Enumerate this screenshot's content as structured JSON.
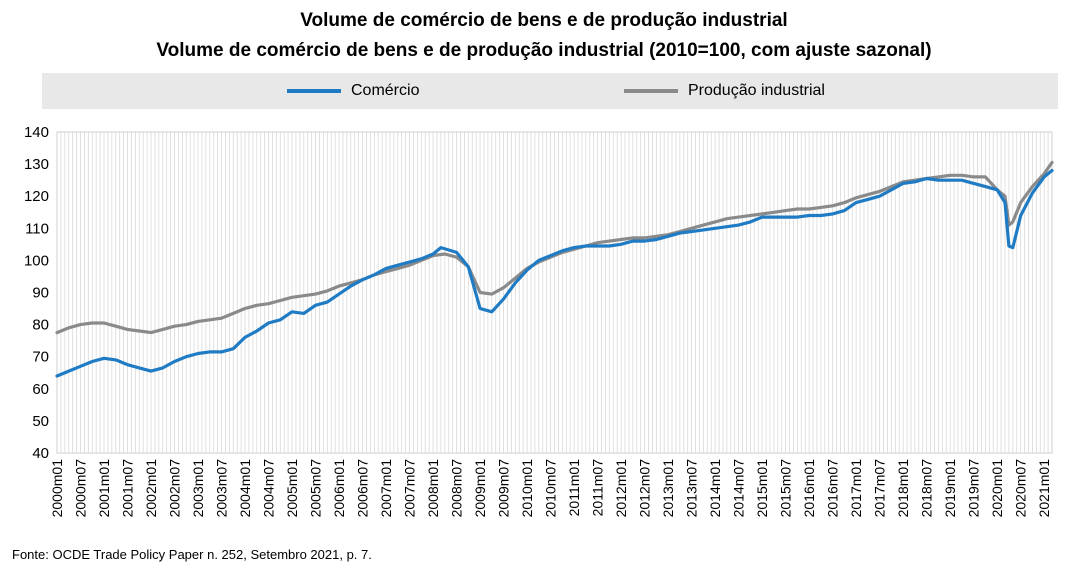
{
  "chart_data": {
    "type": "line",
    "title": "Volume de comércio de bens e de produção industrial",
    "subtitle": "Volume de comércio de bens e de produção industrial (2010=100,  com ajuste sazonal)",
    "xlabel": "",
    "ylabel": "",
    "ylim": [
      40,
      140
    ],
    "yticks": [
      40,
      50,
      60,
      70,
      80,
      90,
      100,
      110,
      120,
      130,
      140
    ],
    "grid": "vertical",
    "legend_position": "top",
    "x_range": [
      "2000m01",
      "2021m01"
    ],
    "x_tick_labels": [
      "2000m01",
      "2000m07",
      "2001m01",
      "2001m07",
      "2002m01",
      "2002m07",
      "2003m01",
      "2003m07",
      "2004m01",
      "2004m07",
      "2005m01",
      "2005m07",
      "2006m01",
      "2006m07",
      "2007m01",
      "2007m07",
      "2008m01",
      "2008m07",
      "2009m01",
      "2009m07",
      "2010m01",
      "2010m07",
      "2011m01",
      "2011m07",
      "2012m01",
      "2012m07",
      "2013m01",
      "2013m07",
      "2014m01",
      "2014m07",
      "2015m01",
      "2015m07",
      "2016m01",
      "2016m07",
      "2017m01",
      "2017m07",
      "2018m01",
      "2018m07",
      "2019m01",
      "2019m07",
      "2020m01",
      "2020m07",
      "2021m01"
    ],
    "series": [
      {
        "name": "Comércio",
        "color": "#1f7bc4",
        "points": [
          [
            "2000m01",
            64
          ],
          [
            "2000m04",
            65.5
          ],
          [
            "2000m07",
            67
          ],
          [
            "2000m10",
            68.5
          ],
          [
            "2001m01",
            69.5
          ],
          [
            "2001m04",
            69
          ],
          [
            "2001m07",
            67.5
          ],
          [
            "2001m10",
            66.5
          ],
          [
            "2002m01",
            65.5
          ],
          [
            "2002m04",
            66.5
          ],
          [
            "2002m07",
            68.5
          ],
          [
            "2002m10",
            70
          ],
          [
            "2003m01",
            71
          ],
          [
            "2003m04",
            71.5
          ],
          [
            "2003m07",
            71.5
          ],
          [
            "2003m10",
            72.5
          ],
          [
            "2004m01",
            76
          ],
          [
            "2004m04",
            78
          ],
          [
            "2004m07",
            80.5
          ],
          [
            "2004m10",
            81.5
          ],
          [
            "2005m01",
            84
          ],
          [
            "2005m04",
            83.5
          ],
          [
            "2005m07",
            86
          ],
          [
            "2005m10",
            87
          ],
          [
            "2006m01",
            89.5
          ],
          [
            "2006m04",
            92
          ],
          [
            "2006m07",
            94
          ],
          [
            "2006m10",
            95.5
          ],
          [
            "2007m01",
            97.5
          ],
          [
            "2007m04",
            98.5
          ],
          [
            "2007m07",
            99.5
          ],
          [
            "2007m10",
            100.5
          ],
          [
            "2008m01",
            102
          ],
          [
            "2008m03",
            104
          ],
          [
            "2008m07",
            102.5
          ],
          [
            "2008m10",
            98
          ],
          [
            "2009m01",
            85
          ],
          [
            "2009m04",
            84
          ],
          [
            "2009m07",
            88
          ],
          [
            "2009m10",
            93
          ],
          [
            "2010m01",
            97
          ],
          [
            "2010m04",
            100
          ],
          [
            "2010m07",
            101.5
          ],
          [
            "2010m10",
            103
          ],
          [
            "2011m01",
            104
          ],
          [
            "2011m04",
            104.5
          ],
          [
            "2011m07",
            104.5
          ],
          [
            "2011m10",
            104.5
          ],
          [
            "2012m01",
            105
          ],
          [
            "2012m04",
            106
          ],
          [
            "2012m07",
            106
          ],
          [
            "2012m10",
            106.5
          ],
          [
            "2013m01",
            107.5
          ],
          [
            "2013m04",
            108.5
          ],
          [
            "2013m07",
            109
          ],
          [
            "2013m10",
            109.5
          ],
          [
            "2014m01",
            110
          ],
          [
            "2014m04",
            110.5
          ],
          [
            "2014m07",
            111
          ],
          [
            "2014m10",
            112
          ],
          [
            "2015m01",
            113.5
          ],
          [
            "2015m04",
            113.5
          ],
          [
            "2015m07",
            113.5
          ],
          [
            "2015m10",
            113.5
          ],
          [
            "2016m01",
            114
          ],
          [
            "2016m04",
            114
          ],
          [
            "2016m07",
            114.5
          ],
          [
            "2016m10",
            115.5
          ],
          [
            "2017m01",
            118
          ],
          [
            "2017m04",
            119
          ],
          [
            "2017m07",
            120
          ],
          [
            "2017m10",
            122
          ],
          [
            "2018m01",
            124
          ],
          [
            "2018m04",
            124.5
          ],
          [
            "2018m07",
            125.5
          ],
          [
            "2018m10",
            125
          ],
          [
            "2019m01",
            125
          ],
          [
            "2019m04",
            125
          ],
          [
            "2019m07",
            124
          ],
          [
            "2019m10",
            123
          ],
          [
            "2020m01",
            122
          ],
          [
            "2020m03",
            118
          ],
          [
            "2020m04",
            104.5
          ],
          [
            "2020m05",
            104
          ],
          [
            "2020m07",
            114
          ],
          [
            "2020m10",
            121
          ],
          [
            "2021m01",
            126
          ],
          [
            "2021m03",
            128
          ]
        ]
      },
      {
        "name": "Produção industrial",
        "color": "#8a8a8a",
        "points": [
          [
            "2000m01",
            77.5
          ],
          [
            "2000m04",
            79
          ],
          [
            "2000m07",
            80
          ],
          [
            "2000m10",
            80.5
          ],
          [
            "2001m01",
            80.5
          ],
          [
            "2001m04",
            79.5
          ],
          [
            "2001m07",
            78.5
          ],
          [
            "2001m10",
            78
          ],
          [
            "2002m01",
            77.5
          ],
          [
            "2002m04",
            78.5
          ],
          [
            "2002m07",
            79.5
          ],
          [
            "2002m10",
            80
          ],
          [
            "2003m01",
            81
          ],
          [
            "2003m04",
            81.5
          ],
          [
            "2003m07",
            82
          ],
          [
            "2003m10",
            83.5
          ],
          [
            "2004m01",
            85
          ],
          [
            "2004m04",
            86
          ],
          [
            "2004m07",
            86.5
          ],
          [
            "2004m10",
            87.5
          ],
          [
            "2005m01",
            88.5
          ],
          [
            "2005m04",
            89
          ],
          [
            "2005m07",
            89.5
          ],
          [
            "2005m10",
            90.5
          ],
          [
            "2006m01",
            92
          ],
          [
            "2006m04",
            93
          ],
          [
            "2006m07",
            94
          ],
          [
            "2006m10",
            95.5
          ],
          [
            "2007m01",
            96.5
          ],
          [
            "2007m04",
            97.5
          ],
          [
            "2007m07",
            98.5
          ],
          [
            "2007m10",
            100
          ],
          [
            "2008m01",
            101.5
          ],
          [
            "2008m04",
            102
          ],
          [
            "2008m07",
            101
          ],
          [
            "2008m10",
            98
          ],
          [
            "2009m01",
            90
          ],
          [
            "2009m04",
            89.5
          ],
          [
            "2009m07",
            91.5
          ],
          [
            "2009m10",
            94.5
          ],
          [
            "2010m01",
            97.5
          ],
          [
            "2010m04",
            99.5
          ],
          [
            "2010m07",
            101
          ],
          [
            "2010m10",
            102.5
          ],
          [
            "2011m01",
            103.5
          ],
          [
            "2011m04",
            104.5
          ],
          [
            "2011m07",
            105.5
          ],
          [
            "2011m10",
            106
          ],
          [
            "2012m01",
            106.5
          ],
          [
            "2012m04",
            107
          ],
          [
            "2012m07",
            107
          ],
          [
            "2012m10",
            107.5
          ],
          [
            "2013m01",
            108
          ],
          [
            "2013m04",
            109
          ],
          [
            "2013m07",
            110
          ],
          [
            "2013m10",
            111
          ],
          [
            "2014m01",
            112
          ],
          [
            "2014m04",
            113
          ],
          [
            "2014m07",
            113.5
          ],
          [
            "2014m10",
            114
          ],
          [
            "2015m01",
            114.5
          ],
          [
            "2015m04",
            115
          ],
          [
            "2015m07",
            115.5
          ],
          [
            "2015m10",
            116
          ],
          [
            "2016m01",
            116
          ],
          [
            "2016m04",
            116.5
          ],
          [
            "2016m07",
            117
          ],
          [
            "2016m10",
            118
          ],
          [
            "2017m01",
            119.5
          ],
          [
            "2017m04",
            120.5
          ],
          [
            "2017m07",
            121.5
          ],
          [
            "2017m10",
            123
          ],
          [
            "2018m01",
            124.5
          ],
          [
            "2018m04",
            125
          ],
          [
            "2018m07",
            125.5
          ],
          [
            "2018m10",
            126
          ],
          [
            "2019m01",
            126.5
          ],
          [
            "2019m04",
            126.5
          ],
          [
            "2019m07",
            126
          ],
          [
            "2019m10",
            126
          ],
          [
            "2020m01",
            122
          ],
          [
            "2020m03",
            120
          ],
          [
            "2020m04",
            111
          ],
          [
            "2020m05",
            112
          ],
          [
            "2020m07",
            118
          ],
          [
            "2020m10",
            123
          ],
          [
            "2021m01",
            127
          ],
          [
            "2021m03",
            130.5
          ]
        ]
      }
    ]
  },
  "source": "Fonte: OCDE Trade Policy Paper n. 252, Setembro   2021, p. 7."
}
